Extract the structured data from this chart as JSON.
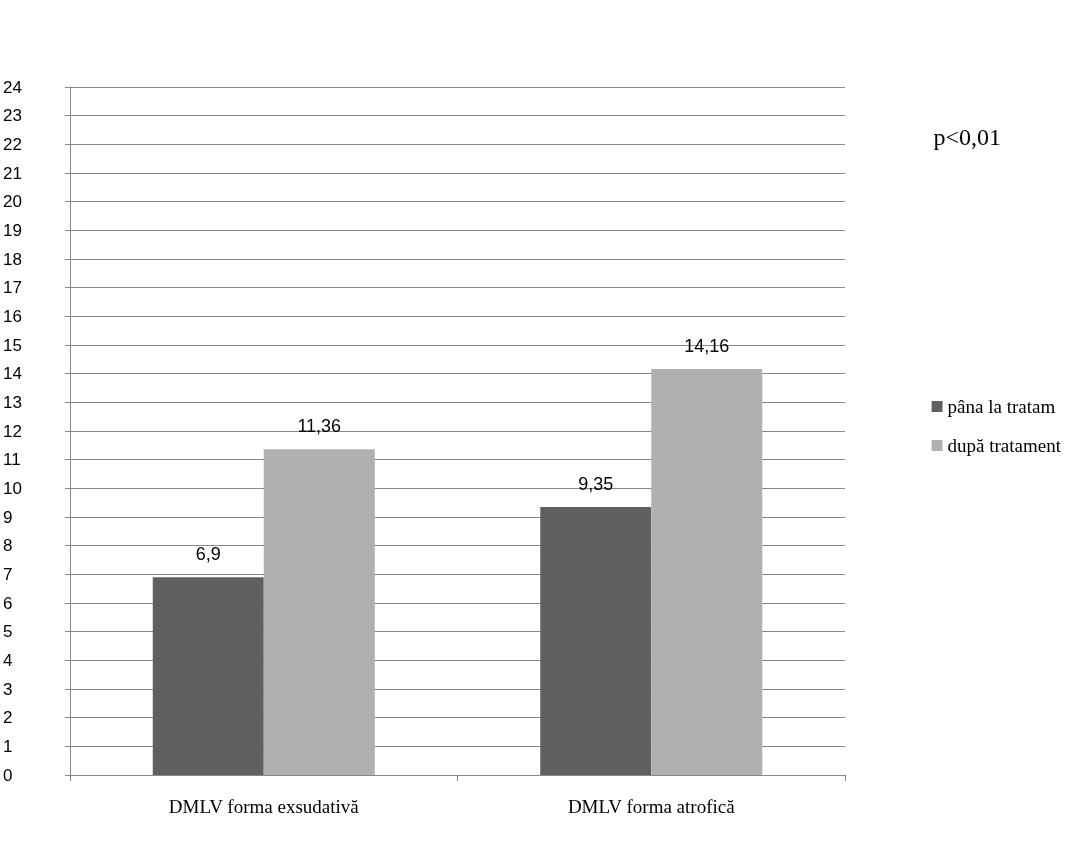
{
  "chart_data": {
    "type": "bar",
    "categories": [
      "DMLV forma exsudativă",
      "DMLV forma atrofică"
    ],
    "series": [
      {
        "name": "pâna la tratam",
        "color": "#606060",
        "values": [
          6.9,
          9.35
        ],
        "value_labels": [
          "6,9",
          "9,35"
        ]
      },
      {
        "name": "după tratament",
        "color": "#b0b0b0",
        "values": [
          11.36,
          14.16
        ],
        "value_labels": [
          "11,36",
          "14,16"
        ]
      }
    ],
    "ylim": [
      0,
      24
    ],
    "yticks": [
      0,
      1,
      2,
      3,
      4,
      5,
      6,
      7,
      8,
      9,
      10,
      11,
      12,
      13,
      14,
      15,
      16,
      17,
      18,
      19,
      20,
      21,
      22,
      23,
      24
    ],
    "grid": "y",
    "legend": "right",
    "annotations": [
      "p<0,01"
    ]
  }
}
